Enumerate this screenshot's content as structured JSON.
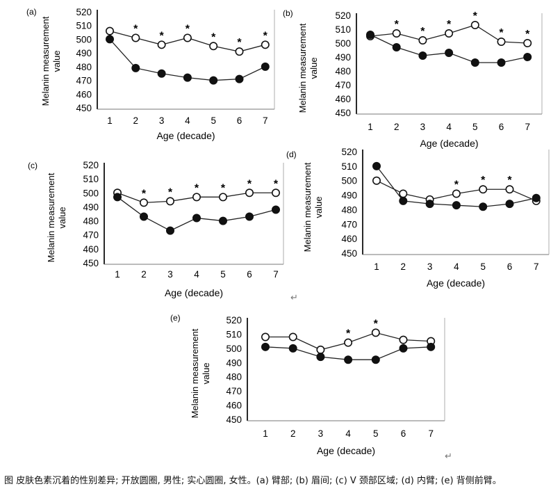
{
  "figure": {
    "caption": "图 皮肤色素沉着的性别差异; 开放圆圈, 男性; 实心圆圈, 女性。(a) 臂部; (b) 眉间; (c) V 颈部区域; (d) 内臂; (e) 背侧前臂。",
    "return_glyph": "↵"
  },
  "chart_data": [
    {
      "type": "line",
      "panel_label": "(a)",
      "title": "",
      "xlabel": "Age (decade)",
      "ylabel_line1": "Melanin measurement",
      "ylabel_line2": "value",
      "categories": [
        "1",
        "2",
        "3",
        "4",
        "5",
        "6",
        "7"
      ],
      "yticks": [
        "450",
        "460",
        "470",
        "480",
        "490",
        "500",
        "510",
        "520"
      ],
      "ylim": [
        450,
        520
      ],
      "series": [
        {
          "name": "Male",
          "marker": "open",
          "values": [
            506,
            501,
            496,
            501,
            495,
            491,
            496
          ]
        },
        {
          "name": "Female",
          "marker": "filled",
          "values": [
            500,
            479,
            475,
            472,
            470,
            471,
            480
          ]
        }
      ],
      "significance": [
        "",
        "*",
        "*",
        "*",
        "*",
        "*",
        "*"
      ]
    },
    {
      "type": "line",
      "panel_label": "(b)",
      "title": "",
      "xlabel": "Age (decade)",
      "ylabel_line1": "Melanin measurement",
      "ylabel_line2": "value",
      "categories": [
        "1",
        "2",
        "3",
        "4",
        "5",
        "6",
        "7"
      ],
      "yticks": [
        "450",
        "460",
        "470",
        "480",
        "490",
        "500",
        "510",
        "520"
      ],
      "ylim": [
        450,
        520
      ],
      "series": [
        {
          "name": "Male",
          "marker": "open",
          "values": [
            505,
            507,
            502,
            507,
            513,
            501,
            500
          ]
        },
        {
          "name": "Female",
          "marker": "filled",
          "values": [
            506,
            497,
            491,
            493,
            486,
            486,
            490
          ]
        }
      ],
      "significance": [
        "",
        "*",
        "*",
        "*",
        "*",
        "*",
        "*"
      ]
    },
    {
      "type": "line",
      "panel_label": "(c)",
      "title": "",
      "xlabel": "Age (decade)",
      "ylabel_line1": "Melanin measurement",
      "ylabel_line2": "value",
      "categories": [
        "1",
        "2",
        "3",
        "4",
        "5",
        "6",
        "7"
      ],
      "yticks": [
        "450",
        "460",
        "470",
        "480",
        "490",
        "500",
        "510",
        "520"
      ],
      "ylim": [
        450,
        520
      ],
      "series": [
        {
          "name": "Male",
          "marker": "open",
          "values": [
            500,
            493,
            494,
            497,
            497,
            500,
            500
          ]
        },
        {
          "name": "Female",
          "marker": "filled",
          "values": [
            497,
            483,
            473,
            482,
            480,
            483,
            488
          ]
        }
      ],
      "significance": [
        "",
        "*",
        "*",
        "*",
        "*",
        "*",
        "*"
      ]
    },
    {
      "type": "line",
      "panel_label": "(d)",
      "title": "",
      "xlabel": "Age (decade)",
      "ylabel_line1": "Melanin measurement",
      "ylabel_line2": "value",
      "categories": [
        "1",
        "2",
        "3",
        "4",
        "5",
        "6",
        "7"
      ],
      "yticks": [
        "450",
        "460",
        "470",
        "480",
        "490",
        "500",
        "510",
        "520"
      ],
      "ylim": [
        450,
        520
      ],
      "series": [
        {
          "name": "Male",
          "marker": "open",
          "values": [
            500,
            491,
            487,
            491,
            494,
            494,
            486
          ]
        },
        {
          "name": "Female",
          "marker": "filled",
          "values": [
            510,
            486,
            484,
            483,
            482,
            484,
            488
          ]
        }
      ],
      "significance": [
        "",
        "",
        "",
        "*",
        "*",
        "*",
        ""
      ]
    },
    {
      "type": "line",
      "panel_label": "(e)",
      "title": "",
      "xlabel": "Age (decade)",
      "ylabel_line1": "Melanin measurement",
      "ylabel_line2": "value",
      "categories": [
        "1",
        "2",
        "3",
        "4",
        "5",
        "6",
        "7"
      ],
      "yticks": [
        "450",
        "460",
        "470",
        "480",
        "490",
        "500",
        "510",
        "520"
      ],
      "ylim": [
        450,
        520
      ],
      "series": [
        {
          "name": "Male",
          "marker": "open",
          "values": [
            508,
            508,
            499,
            504,
            511,
            506,
            505
          ]
        },
        {
          "name": "Female",
          "marker": "filled",
          "values": [
            501,
            500,
            494,
            492,
            492,
            500,
            501
          ]
        }
      ],
      "significance": [
        "",
        "",
        "",
        "*",
        "*",
        "",
        ""
      ]
    }
  ]
}
